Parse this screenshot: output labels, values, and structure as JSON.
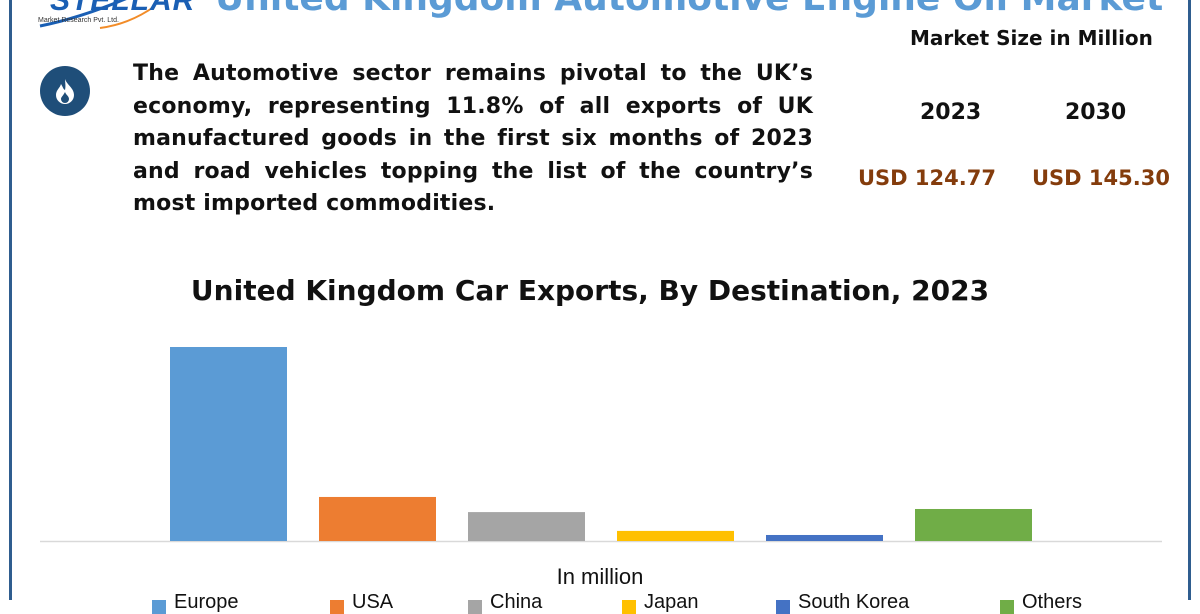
{
  "header": {
    "logo_text": "STELLAR",
    "logo_subtext": "Market Research Pvt. Ltd.",
    "title": "United Kingdom Automotive Engine Oil Market"
  },
  "intro": {
    "icon": "flame-icon",
    "text": "The Automotive sector remains pivotal to the UK’s economy, representing 11.8% of all exports of UK manufactured goods in the first six months of 2023 and road vehicles topping the list of the country’s most imported commodities."
  },
  "market_size": {
    "title": "Market Size in Million",
    "years": [
      "2023",
      "2030"
    ],
    "values": [
      "USD 124.77",
      "USD 145.30"
    ],
    "value_color": "#843c0c"
  },
  "chart_data": {
    "type": "bar",
    "title": "United Kingdom Car Exports, By Destination, 2023",
    "xlabel": "In million",
    "ylabel": "",
    "categories": [
      "Europe",
      "USA",
      "China",
      "Japan",
      "South Korea",
      "Others"
    ],
    "values": [
      100,
      22.7,
      14.9,
      5.2,
      3.1,
      16.5
    ],
    "colors": [
      "#5b9bd5",
      "#ed7d31",
      "#a5a5a5",
      "#ffc000",
      "#4472c4",
      "#70ad47"
    ],
    "ylim": [
      0,
      100
    ],
    "grid": false,
    "legend": "bottom"
  }
}
